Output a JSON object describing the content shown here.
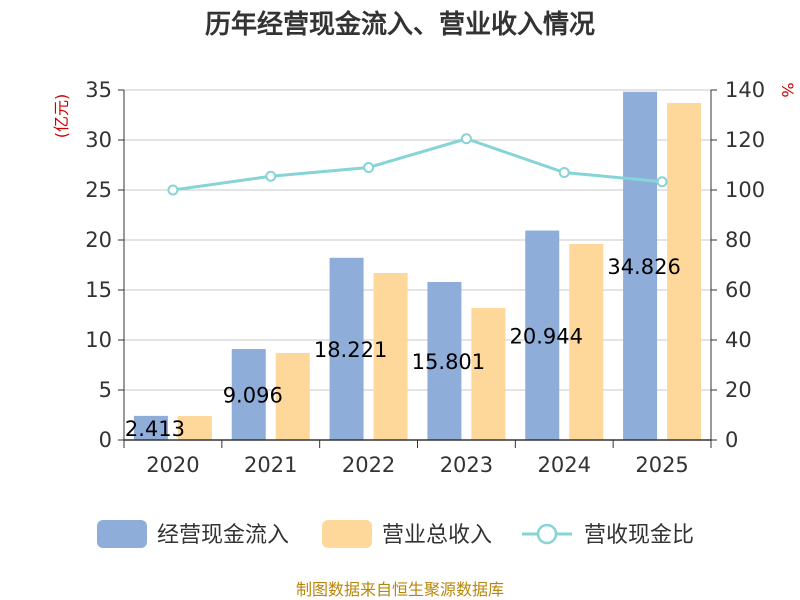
{
  "chart_data": {
    "type": "bar",
    "title": "历年经营现金流入、营业收入情况",
    "categories": [
      "2020",
      "2021",
      "2022",
      "2023",
      "2024",
      "2025"
    ],
    "left_axis": {
      "unit": "(亿元)",
      "min": 0,
      "max": 35,
      "ticks": [
        0,
        5,
        10,
        15,
        20,
        25,
        30,
        35
      ]
    },
    "right_axis": {
      "unit": "%",
      "min": 0,
      "max": 140,
      "ticks": [
        0,
        20,
        40,
        60,
        80,
        100,
        120,
        140
      ]
    },
    "grid": true,
    "legend_position": "bottom",
    "series": [
      {
        "name": "经营现金流入",
        "type": "bar",
        "axis": "left",
        "color": "#8eadd9",
        "values": [
          2.413,
          9.096,
          18.221,
          15.801,
          20.944,
          34.826
        ],
        "labels": [
          "2.413",
          "9.096",
          "18.221",
          "15.801",
          "20.944",
          "34.826"
        ]
      },
      {
        "name": "营业总收入",
        "type": "bar",
        "axis": "left",
        "color": "#fdd89a",
        "values": [
          2.4,
          8.7,
          16.7,
          13.2,
          19.6,
          33.7
        ]
      },
      {
        "name": "营收现金比",
        "type": "line",
        "axis": "right",
        "color": "#86d4d6",
        "values": [
          100.0,
          105.5,
          109.0,
          120.5,
          107.0,
          103.3
        ]
      }
    ]
  },
  "source_note": "制图数据来自恒生聚源数据库"
}
